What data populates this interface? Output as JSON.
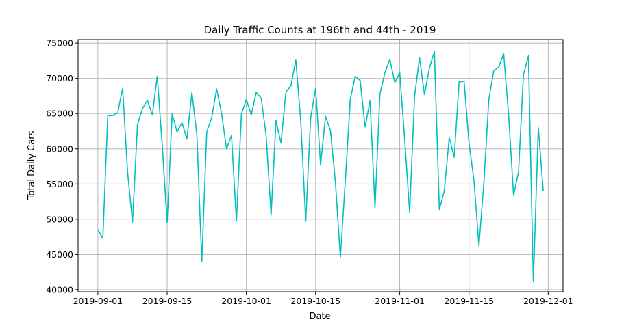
{
  "chart_data": {
    "type": "line",
    "title": "Daily Traffic Counts at 196th and 44th - 2019",
    "xlabel": "Date",
    "ylabel": "Total Daily Cars",
    "x_start": "2019-09-01",
    "x_step_days": 1,
    "xlim": [
      "2019-08-28",
      "2019-12-04"
    ],
    "ylim": [
      39700,
      75500
    ],
    "xticks": [
      "2019-09-01",
      "2019-09-15",
      "2019-10-01",
      "2019-10-15",
      "2019-11-01",
      "2019-11-15",
      "2019-12-01"
    ],
    "yticks": [
      40000,
      45000,
      50000,
      55000,
      60000,
      65000,
      70000,
      75000
    ],
    "ytick_labels": [
      "40000",
      "45000",
      "50000",
      "55000",
      "60000",
      "65000",
      "70000",
      "75000"
    ],
    "grid": true,
    "series_color": "#00bfbf",
    "series": [
      {
        "values": [
          48500,
          47300,
          64700,
          64700,
          65100,
          68600,
          56700,
          49600,
          63400,
          65700,
          66900,
          64800,
          70300,
          60500,
          49500,
          65000,
          62400,
          63700,
          61400,
          68000,
          62000,
          44000,
          62400,
          64400,
          68500,
          65000,
          60000,
          61900,
          49700,
          64900,
          67000,
          64800,
          68000,
          67200,
          61900,
          50600,
          64000,
          60800,
          68100,
          68900,
          72600,
          63900,
          49700,
          64400,
          68600,
          57700,
          64600,
          62600,
          55300,
          44600,
          55400,
          67000,
          70300,
          69700,
          63100,
          66800,
          51600,
          67800,
          70800,
          72700,
          69400,
          70800,
          61300,
          51000,
          67500,
          72900,
          67700,
          71500,
          73800,
          51400,
          54000,
          61600,
          58800,
          69500,
          69600,
          60800,
          55500,
          46200,
          55200,
          67000,
          71100,
          71600,
          73500,
          64800,
          53400,
          56700,
          70500,
          73200,
          41200,
          63000,
          54000
        ]
      }
    ]
  }
}
